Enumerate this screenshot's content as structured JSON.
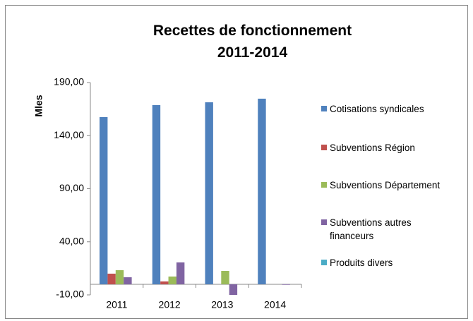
{
  "chart_data": {
    "type": "bar",
    "title": "Recettes de fonctionnement 2011-2014",
    "y_label": "Mles",
    "categories": [
      "2011",
      "2012",
      "2013",
      "2014"
    ],
    "series": [
      {
        "name": "Cotisations syndicales",
        "color": "#4f81bd",
        "values": [
          157.5,
          168.8,
          171.4,
          174.8
        ]
      },
      {
        "name": "Subventions Région",
        "color": "#c0504d",
        "values": [
          10,
          2.7,
          0,
          0
        ]
      },
      {
        "name": "Subventions Département",
        "color": "#9bbb59",
        "values": [
          13.3,
          7.3,
          12.6,
          0
        ]
      },
      {
        "name": "Subventions autres financeurs",
        "color": "#8064a2",
        "values": [
          6.6,
          20.6,
          -10,
          -0.5
        ]
      },
      {
        "name": "Produits divers",
        "color": "#4bacc6",
        "values": [
          0,
          0,
          0,
          0
        ]
      }
    ],
    "ylim": [
      -10,
      190
    ],
    "yticks": [
      {
        "value": -10,
        "label": "-10,00"
      },
      {
        "value": 40,
        "label": "40,00"
      },
      {
        "value": 90,
        "label": "90,00"
      },
      {
        "value": 140,
        "label": "140,00"
      },
      {
        "value": 190,
        "label": "190,00"
      }
    ],
    "legend": "right"
  }
}
